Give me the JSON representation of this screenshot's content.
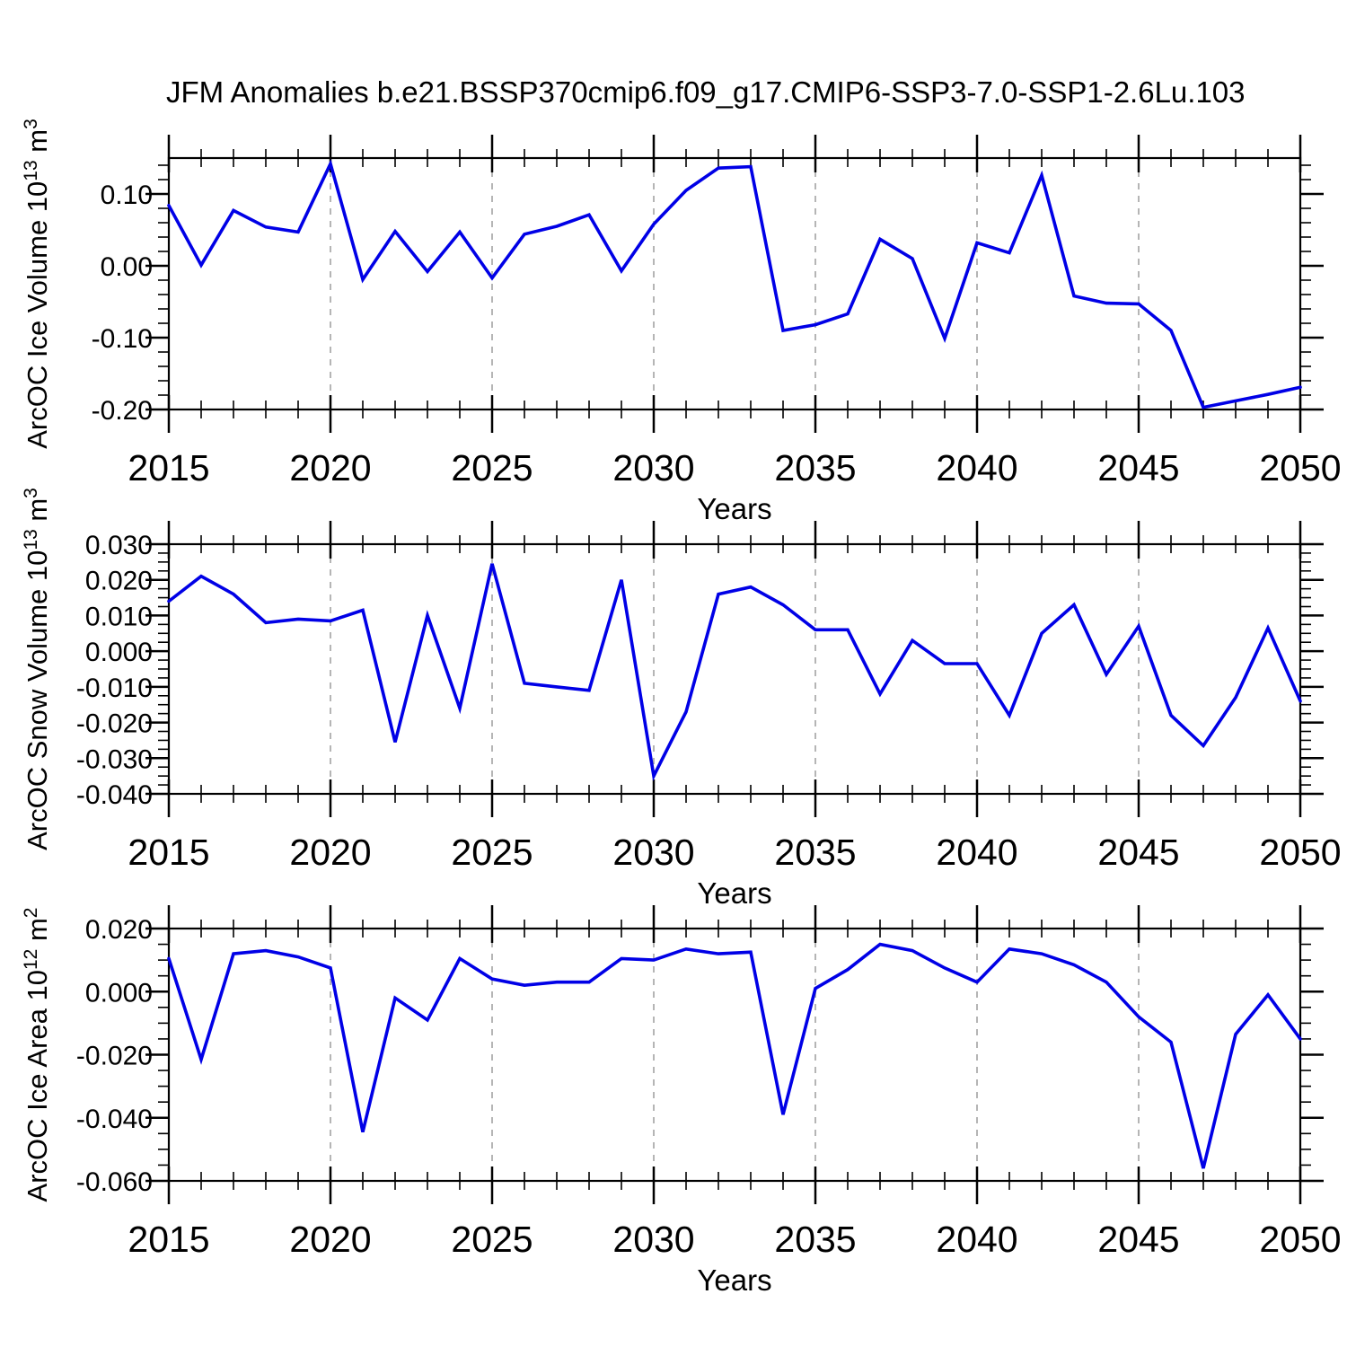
{
  "title": "JFM Anomalies b.e21.BSSP370cmip6.f09_g17.CMIP6-SSP3-7.0-SSP1-2.6Lu.103",
  "colors": {
    "line": "#0000E6",
    "dashed_gridline": "#ADADAD",
    "axis": "#000000"
  },
  "years": [
    2015,
    2016,
    2017,
    2018,
    2019,
    2020,
    2021,
    2022,
    2023,
    2024,
    2025,
    2026,
    2027,
    2028,
    2029,
    2030,
    2031,
    2032,
    2033,
    2034,
    2035,
    2036,
    2037,
    2038,
    2039,
    2040,
    2041,
    2042,
    2043,
    2044,
    2045,
    2046,
    2047,
    2048,
    2049,
    2050
  ],
  "chart_data": [
    {
      "type": "line",
      "name": "ice-volume",
      "ylabel_text": "ArcOC Ice Volume 10^13 m^3",
      "ylabel_segments": [
        {
          "t": "ArcOC Ice Volume 10"
        },
        {
          "t": "13",
          "sup": true
        },
        {
          "t": " m"
        },
        {
          "t": "3",
          "sup": true
        }
      ],
      "xlabel": "Years",
      "ylim": [
        -0.2,
        0.15
      ],
      "yticks": [
        {
          "v": 0.1,
          "label": "0.10"
        },
        {
          "v": 0.0,
          "label": "0.00"
        },
        {
          "v": -0.1,
          "label": "-0.10"
        },
        {
          "v": -0.2,
          "label": "-0.20"
        }
      ],
      "y_minor_step": 0.02,
      "xticks": [
        2015,
        2020,
        2025,
        2030,
        2035,
        2040,
        2045,
        2050
      ],
      "x_minor_step": 1,
      "dashed_gridline_years": [
        2020,
        2025,
        2030,
        2035,
        2040,
        2045
      ],
      "values": [
        0.084,
        0.001,
        0.077,
        0.054,
        0.047,
        0.142,
        -0.019,
        0.048,
        -0.008,
        0.047,
        -0.017,
        0.044,
        0.055,
        0.071,
        -0.007,
        0.058,
        0.105,
        0.136,
        0.138,
        -0.09,
        -0.082,
        -0.067,
        0.037,
        0.01,
        -0.101,
        0.032,
        0.018,
        0.126,
        -0.042,
        -0.052,
        -0.053,
        -0.09,
        -0.197,
        -0.188,
        -0.179,
        -0.169
      ]
    },
    {
      "type": "line",
      "name": "snow-volume",
      "ylabel_text": "ArcOC Snow Volume 10^13 m^3",
      "ylabel_segments": [
        {
          "t": "ArcOC Snow Volume 10"
        },
        {
          "t": "13",
          "sup": true
        },
        {
          "t": " m"
        },
        {
          "t": "3",
          "sup": true
        }
      ],
      "xlabel": "Years",
      "ylim": [
        -0.04,
        0.03
      ],
      "yticks": [
        {
          "v": 0.03,
          "label": "0.030"
        },
        {
          "v": 0.02,
          "label": "0.020"
        },
        {
          "v": 0.01,
          "label": "0.010"
        },
        {
          "v": 0.0,
          "label": "0.000"
        },
        {
          "v": -0.01,
          "label": "-0.010"
        },
        {
          "v": -0.02,
          "label": "-0.020"
        },
        {
          "v": -0.03,
          "label": "-0.030"
        },
        {
          "v": -0.04,
          "label": "-0.040"
        }
      ],
      "y_minor_step": 0.0025,
      "xticks": [
        2015,
        2020,
        2025,
        2030,
        2035,
        2040,
        2045,
        2050
      ],
      "x_minor_step": 1,
      "dashed_gridline_years": [
        2020,
        2025,
        2030,
        2035,
        2040,
        2045
      ],
      "values": [
        0.014,
        0.021,
        0.016,
        0.008,
        0.009,
        0.0085,
        0.0115,
        -0.0255,
        0.01,
        -0.016,
        0.0245,
        -0.009,
        -0.01,
        -0.011,
        0.02,
        -0.035,
        -0.017,
        0.016,
        0.018,
        0.013,
        0.006,
        0.006,
        -0.012,
        0.003,
        -0.0035,
        -0.0035,
        -0.018,
        0.005,
        0.013,
        -0.0065,
        0.007,
        -0.018,
        -0.0265,
        -0.013,
        0.0065,
        -0.014
      ]
    },
    {
      "type": "line",
      "name": "ice-area",
      "ylabel_text": "ArcOC Ice Area 10^12 m^2",
      "ylabel_segments": [
        {
          "t": "ArcOC Ice Area 10"
        },
        {
          "t": "12",
          "sup": true
        },
        {
          "t": " m"
        },
        {
          "t": "2",
          "sup": true
        }
      ],
      "xlabel": "Years",
      "ylim": [
        -0.06,
        0.02
      ],
      "yticks": [
        {
          "v": 0.02,
          "label": "0.020"
        },
        {
          "v": 0.0,
          "label": "0.000"
        },
        {
          "v": -0.02,
          "label": "-0.020"
        },
        {
          "v": -0.04,
          "label": "-0.040"
        },
        {
          "v": -0.06,
          "label": "-0.060"
        }
      ],
      "y_minor_step": 0.005,
      "xticks": [
        2015,
        2020,
        2025,
        2030,
        2035,
        2040,
        2045,
        2050
      ],
      "x_minor_step": 1,
      "dashed_gridline_years": [
        2020,
        2025,
        2030,
        2035,
        2040,
        2045
      ],
      "values": [
        0.0105,
        -0.0215,
        0.012,
        0.013,
        0.011,
        0.0075,
        -0.0445,
        -0.002,
        -0.009,
        0.0105,
        0.004,
        0.002,
        0.003,
        0.003,
        0.0105,
        0.01,
        0.0135,
        0.012,
        0.0125,
        -0.039,
        0.001,
        0.007,
        0.015,
        0.013,
        0.0075,
        0.003,
        0.0135,
        0.012,
        0.0085,
        0.003,
        -0.008,
        -0.016,
        -0.056,
        -0.0135,
        -0.001,
        -0.015
      ]
    }
  ]
}
